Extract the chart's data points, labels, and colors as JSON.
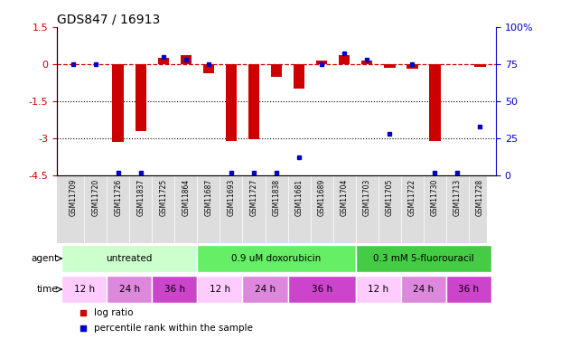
{
  "title": "GDS847 / 16913",
  "samples": [
    "GSM11709",
    "GSM11720",
    "GSM11726",
    "GSM11837",
    "GSM11725",
    "GSM11864",
    "GSM11687",
    "GSM11693",
    "GSM11727",
    "GSM11838",
    "GSM11681",
    "GSM11689",
    "GSM11704",
    "GSM11703",
    "GSM11705",
    "GSM11722",
    "GSM11730",
    "GSM11713",
    "GSM11728"
  ],
  "log_ratio": [
    0.0,
    0.0,
    -3.15,
    -2.7,
    0.25,
    0.35,
    -0.35,
    -3.1,
    -3.05,
    -0.5,
    -1.0,
    0.15,
    0.35,
    0.15,
    -0.15,
    -0.2,
    -3.1,
    0.0,
    -0.1
  ],
  "percentile_rank": [
    75,
    75,
    2,
    2,
    80,
    78,
    75,
    2,
    2,
    2,
    12,
    75,
    82,
    78,
    28,
    75,
    2,
    2,
    33
  ],
  "ylim_left": [
    -4.5,
    1.5
  ],
  "ylim_right": [
    0,
    100
  ],
  "yticks_left": [
    1.5,
    0,
    -1.5,
    -3.0,
    -4.5
  ],
  "yticks_right": [
    100,
    75,
    50,
    25,
    0
  ],
  "hlines": [
    -1.5,
    -3.0
  ],
  "dashed_hline": 0.0,
  "agent_groups": [
    {
      "label": "untreated",
      "start": 0,
      "end": 6,
      "color": "#ccffcc"
    },
    {
      "label": "0.9 uM doxorubicin",
      "start": 6,
      "end": 13,
      "color": "#66ee66"
    },
    {
      "label": "0.3 mM 5-fluorouracil",
      "start": 13,
      "end": 19,
      "color": "#44cc44"
    }
  ],
  "time_groups": [
    {
      "label": "12 h",
      "start": 0,
      "end": 2,
      "color": "#ffccff"
    },
    {
      "label": "24 h",
      "start": 2,
      "end": 4,
      "color": "#dd88dd"
    },
    {
      "label": "36 h",
      "start": 4,
      "end": 6,
      "color": "#cc44cc"
    },
    {
      "label": "12 h",
      "start": 6,
      "end": 8,
      "color": "#ffccff"
    },
    {
      "label": "24 h",
      "start": 8,
      "end": 10,
      "color": "#dd88dd"
    },
    {
      "label": "36 h",
      "start": 10,
      "end": 13,
      "color": "#cc44cc"
    },
    {
      "label": "12 h",
      "start": 13,
      "end": 15,
      "color": "#ffccff"
    },
    {
      "label": "24 h",
      "start": 15,
      "end": 17,
      "color": "#dd88dd"
    },
    {
      "label": "36 h",
      "start": 17,
      "end": 19,
      "color": "#cc44cc"
    }
  ],
  "bar_color": "#cc0000",
  "dot_color": "#0000cc",
  "background_color": "#ffffff"
}
